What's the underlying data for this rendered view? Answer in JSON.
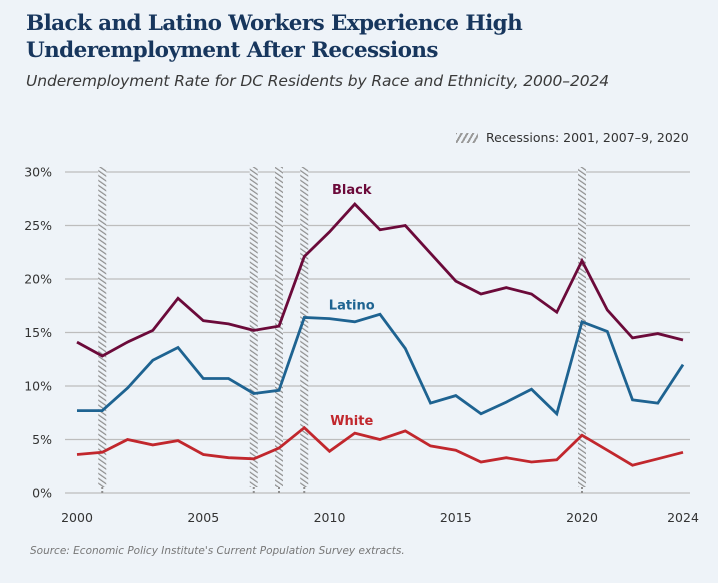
{
  "header": {
    "title": "Black and Latino Workers Experience High Underemployment After Recessions",
    "subtitle": "Underemployment Rate for DC Residents by Race and Ethnicity, 2000–2024"
  },
  "legend": {
    "recessions_label": "Recessions: 2001, 2007–9, 2020"
  },
  "source": "Source: Economic Policy Institute's Current Population Survey extracts.",
  "colors": {
    "Black": "#6b0a3a",
    "Latino": "#1e6391",
    "White": "#c1272d",
    "grid": "#bdbdbd",
    "recession": "#9a9a9a"
  },
  "chart_data": {
    "type": "line",
    "title": "Underemployment Rate for DC Residents by Race and Ethnicity, 2000–2024",
    "xlabel": "",
    "ylabel": "",
    "x": [
      2000,
      2001,
      2002,
      2003,
      2004,
      2005,
      2006,
      2007,
      2008,
      2009,
      2010,
      2011,
      2012,
      2013,
      2014,
      2015,
      2016,
      2017,
      2018,
      2019,
      2020,
      2021,
      2022,
      2023,
      2024
    ],
    "xticks": [
      "2000",
      "2005",
      "2010",
      "2015",
      "2020",
      "2024"
    ],
    "xtick_values": [
      2000,
      2005,
      2010,
      2015,
      2020,
      2024
    ],
    "ylim": [
      0,
      30
    ],
    "yticks": [
      "0%",
      "5%",
      "10%",
      "15%",
      "20%",
      "25%",
      "30%"
    ],
    "ytick_values": [
      0,
      5,
      10,
      15,
      20,
      25,
      30
    ],
    "grid": true,
    "recession_years": [
      2001,
      2007,
      2008,
      2009,
      2020
    ],
    "series": [
      {
        "name": "Black",
        "label": "Black",
        "values": [
          14.1,
          12.8,
          14.1,
          15.2,
          18.2,
          16.1,
          15.8,
          15.2,
          15.6,
          22.1,
          24.4,
          27.0,
          24.6,
          25.0,
          22.4,
          19.8,
          18.6,
          19.2,
          18.6,
          16.9,
          21.7,
          17.1,
          14.5,
          14.9,
          14.3
        ]
      },
      {
        "name": "Latino",
        "label": "Latino",
        "values": [
          7.7,
          7.7,
          9.8,
          12.4,
          13.6,
          10.7,
          10.7,
          9.3,
          9.6,
          16.4,
          16.3,
          16.0,
          16.7,
          13.5,
          8.4,
          9.1,
          7.4,
          8.5,
          9.7,
          7.4,
          16.0,
          15.1,
          8.7,
          8.4,
          12.0
        ]
      },
      {
        "name": "White",
        "label": "White",
        "values": [
          3.6,
          3.8,
          5.0,
          4.5,
          4.9,
          3.6,
          3.3,
          3.2,
          4.2,
          6.1,
          3.9,
          5.6,
          5.0,
          5.8,
          4.4,
          4.0,
          2.9,
          3.3,
          2.9,
          3.1,
          5.4,
          4.0,
          2.6,
          3.2,
          3.8
        ]
      }
    ],
    "series_label_positions": {
      "Black": {
        "x": 2011,
        "y": 28.4
      },
      "Latino": {
        "x": 2011,
        "y": 17.6
      },
      "White": {
        "x": 2011,
        "y": 6.8
      }
    }
  }
}
